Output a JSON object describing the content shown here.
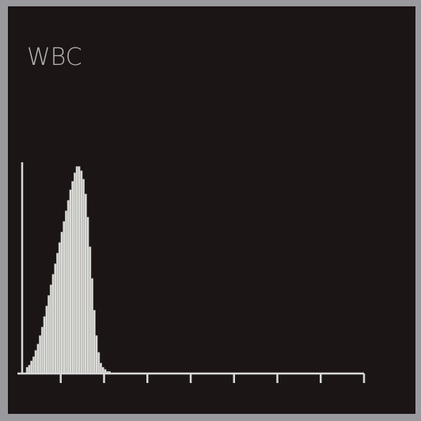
{
  "chart_data": {
    "type": "histogram",
    "title": "WBC",
    "bins": [
      0.2,
      0.25,
      0.3,
      0.35,
      0.4,
      0.45,
      0.5,
      0.55,
      0.6,
      0.65,
      0.7,
      0.75,
      0.8,
      0.85,
      0.9,
      0.95,
      1.0,
      1.05,
      1.1,
      1.15,
      1.2,
      1.25,
      1.3,
      1.35,
      1.4,
      1.45,
      1.5,
      1.55,
      1.6,
      1.65,
      1.7,
      1.75,
      1.8,
      1.85,
      1.9,
      1.95,
      2.0,
      2.05,
      2.1,
      2.15
    ],
    "values": [
      3,
      4,
      6,
      8,
      11,
      14,
      18,
      22,
      27,
      32,
      37,
      42,
      47,
      52,
      57,
      62,
      67,
      72,
      77,
      82,
      87,
      91,
      95,
      98,
      98,
      96,
      92,
      85,
      74,
      60,
      45,
      30,
      18,
      10,
      5,
      3,
      2,
      1,
      1
    ],
    "color": "#dcdcd8",
    "xlim": [
      0,
      8
    ],
    "xticks": [
      1,
      2,
      3,
      4,
      5,
      6,
      7,
      8
    ],
    "ylim": [
      0,
      100
    ]
  }
}
